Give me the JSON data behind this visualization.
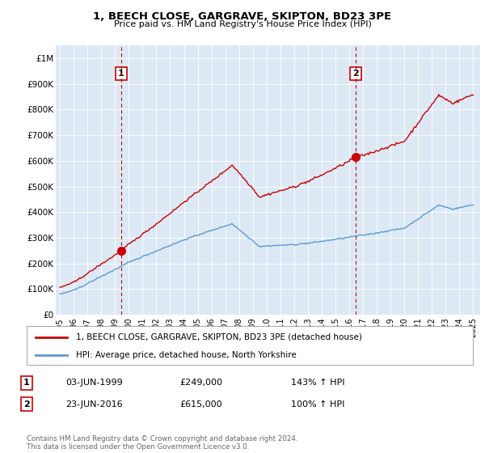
{
  "title": "1, BEECH CLOSE, GARGRAVE, SKIPTON, BD23 3PE",
  "subtitle": "Price paid vs. HM Land Registry's House Price Index (HPI)",
  "legend_line1": "1, BEECH CLOSE, GARGRAVE, SKIPTON, BD23 3PE (detached house)",
  "legend_line2": "HPI: Average price, detached house, North Yorkshire",
  "table_rows": [
    {
      "num": "1",
      "date": "03-JUN-1999",
      "price": "£249,000",
      "hpi": "143% ↑ HPI"
    },
    {
      "num": "2",
      "date": "23-JUN-2016",
      "price": "£615,000",
      "hpi": "100% ↑ HPI"
    }
  ],
  "footnote": "Contains HM Land Registry data © Crown copyright and database right 2024.\nThis data is licensed under the Open Government Licence v3.0.",
  "sale1_year": 1999.43,
  "sale1_price": 249000,
  "sale2_year": 2016.47,
  "sale2_price": 615000,
  "hpi_color": "#5b9bd5",
  "price_color": "#cc0000",
  "dashed_color": "#cc0000",
  "plot_bg_color": "#dce9f5",
  "ylim_min": 0,
  "ylim_max": 1050000,
  "yticks": [
    0,
    100000,
    200000,
    300000,
    400000,
    500000,
    600000,
    700000,
    800000,
    900000,
    1000000
  ],
  "ytick_labels": [
    "£0",
    "£100K",
    "£200K",
    "£300K",
    "£400K",
    "£500K",
    "£600K",
    "£700K",
    "£800K",
    "£900K",
    "£1M"
  ],
  "xlabel_years": [
    1995,
    1996,
    1997,
    1998,
    1999,
    2000,
    2001,
    2002,
    2003,
    2004,
    2005,
    2006,
    2007,
    2008,
    2009,
    2010,
    2011,
    2012,
    2013,
    2014,
    2015,
    2016,
    2017,
    2018,
    2019,
    2020,
    2021,
    2022,
    2023,
    2024,
    2025
  ],
  "bg_color": "#ffffff",
  "grid_color": "#ffffff"
}
